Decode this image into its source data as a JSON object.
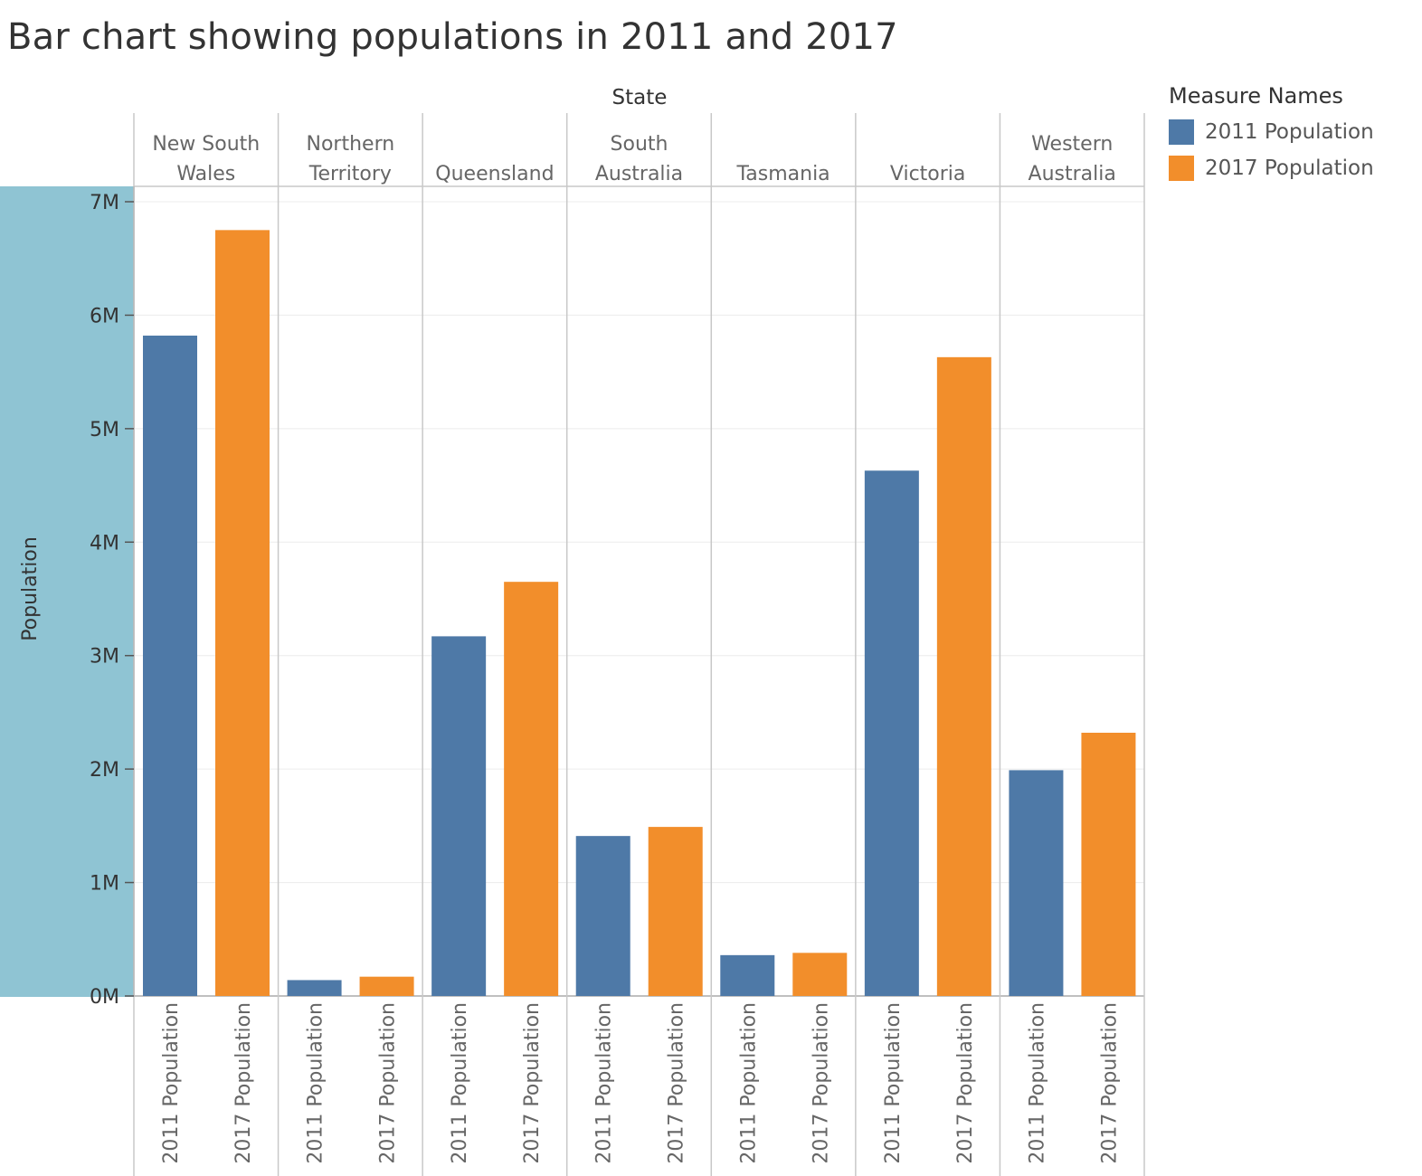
{
  "chart_data": {
    "type": "bar",
    "title": "Bar chart showing populations in 2011 and 2017",
    "column_header": "State",
    "ylabel": "Population",
    "ylim": [
      0,
      7000000
    ],
    "y_ticks": [
      {
        "value": 0,
        "label": "0M"
      },
      {
        "value": 1000000,
        "label": "1M"
      },
      {
        "value": 2000000,
        "label": "2M"
      },
      {
        "value": 3000000,
        "label": "3M"
      },
      {
        "value": 4000000,
        "label": "4M"
      },
      {
        "value": 5000000,
        "label": "5M"
      },
      {
        "value": 6000000,
        "label": "6M"
      },
      {
        "value": 7000000,
        "label": "7M"
      }
    ],
    "categories": [
      [
        "New South",
        "Wales"
      ],
      [
        "Northern",
        "Territory"
      ],
      [
        "Queensland"
      ],
      [
        "South",
        "Australia"
      ],
      [
        "Tasmania"
      ],
      [
        "Victoria"
      ],
      [
        "Western",
        "Australia"
      ]
    ],
    "series": [
      {
        "name": "2011 Population",
        "color": "#4e79a7",
        "values": [
          5820000,
          140000,
          3170000,
          1410000,
          360000,
          4630000,
          1990000
        ]
      },
      {
        "name": "2017 Population",
        "color": "#f28e2b",
        "values": [
          6750000,
          170000,
          3650000,
          1490000,
          380000,
          5630000,
          2320000
        ]
      }
    ],
    "legend": {
      "title": "Measure Names",
      "position": "top-right"
    },
    "grid": true
  },
  "colors": {
    "axis_band": "#8fc4d3",
    "grid": "#ececec",
    "divider": "#c8c8c8"
  }
}
